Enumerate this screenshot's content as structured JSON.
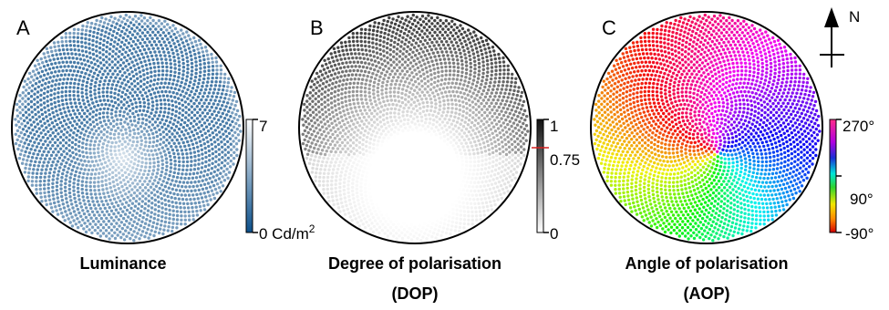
{
  "panels": [
    {
      "letter": "A",
      "caption_line1": "Luminance",
      "caption_line2": "",
      "scale_top": "7",
      "scale_bottom": "0 Cd/m",
      "scale_bottom_sup": "2",
      "scale_mid": ""
    },
    {
      "letter": "B",
      "caption_line1": "Degree of polarisation",
      "caption_line2": "(DOP)",
      "scale_top": "1",
      "scale_mid": "0.75",
      "scale_bottom": "0"
    },
    {
      "letter": "C",
      "caption_line1": "Angle of polarisation",
      "caption_line2": "(AOP)",
      "scale_top": "270°",
      "scale_mid": "90°",
      "scale_bottom": "-90°"
    }
  ],
  "compass": {
    "label": "N"
  },
  "colors": {
    "luminance_low": "#0b4f8a",
    "luminance_high": "#ffffff",
    "dop_low": "#ffffff",
    "dop_high": "#111111",
    "marker": "#d62020"
  }
}
